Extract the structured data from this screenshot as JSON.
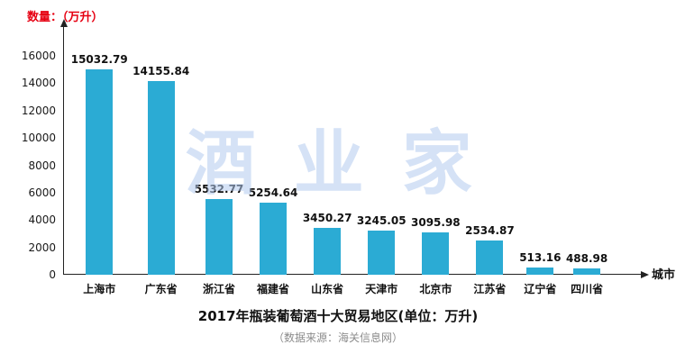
{
  "chart": {
    "y_unit_label": "数量：（万升）",
    "x_axis_label": "城市",
    "watermark": "酒业家",
    "title": "2017年瓶装葡萄酒十大贸易地区(单位：万升)",
    "source": "（数据来源：海关信息网）",
    "bar_color": "#2BABD4",
    "unit_label_color": "#e60012"
  },
  "chart_data": {
    "type": "bar",
    "title": "2017年瓶装葡萄酒十大贸易地区(单位：万升)",
    "xlabel": "城市",
    "ylabel": "数量：（万升）",
    "categories": [
      "上海市",
      "广东省",
      "浙江省",
      "福建省",
      "山东省",
      "天津市",
      "北京市",
      "江苏省",
      "辽宁省",
      "四川省"
    ],
    "values": [
      15032.79,
      14155.84,
      5532.77,
      5254.64,
      3450.27,
      3245.05,
      3095.98,
      2534.87,
      513.16,
      488.98
    ],
    "ylim": [
      0,
      16000
    ],
    "yticks": [
      0,
      2000,
      4000,
      6000,
      8000,
      10000,
      12000,
      14000,
      16000
    ],
    "grid": false,
    "legend": false,
    "annotations": [
      "（数据来源：海关信息网）"
    ]
  }
}
